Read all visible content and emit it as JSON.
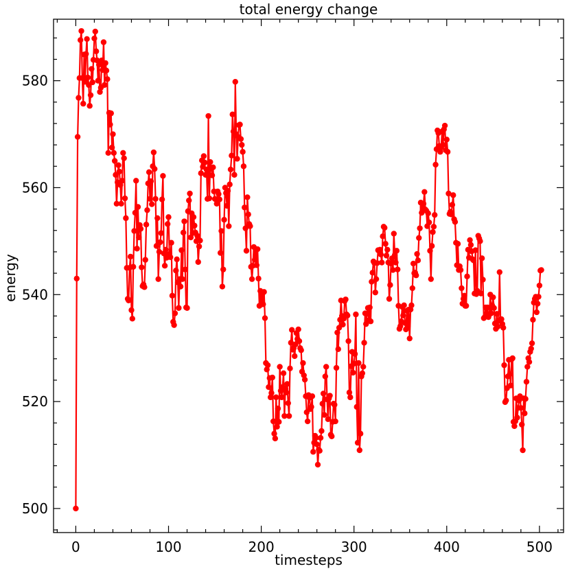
{
  "chart_data": {
    "type": "line",
    "title": "total energy change",
    "xlabel": "timesteps",
    "ylabel": "energy",
    "xlim": [
      -24,
      526
    ],
    "ylim": [
      495.5,
      591.5
    ],
    "xticks": [
      0,
      100,
      200,
      300,
      400,
      500
    ],
    "yticks": [
      500,
      520,
      540,
      560,
      580
    ],
    "x_minor_step": 20,
    "y_minor_step": 4,
    "grid": false,
    "series": [
      {
        "color": "#ff0000",
        "marker": "circle",
        "x_start": 0,
        "x_step": 1,
        "values": [
          500.0,
          543.0,
          569.5,
          576.8,
          580.5,
          587.6,
          589.3,
          580.5,
          575.7,
          584.9,
          579.8,
          585.0,
          587.8,
          580.6,
          579.2,
          575.3,
          577.3,
          582.2,
          579.7,
          583.9,
          587.9,
          589.2,
          585.5,
          583.8,
          580.0,
          583.0,
          577.9,
          578.7,
          583.8,
          582.0,
          587.2,
          579.2,
          583.3,
          581.9,
          580.3,
          566.5,
          574.0,
          571.8,
          573.9,
          567.5,
          570.0,
          566.5,
          565.0,
          562.4,
          557.0,
          561.0,
          564.2,
          563.0,
          560.5,
          557.0,
          561.3,
          566.5,
          565.5,
          558.0,
          554.3,
          545.0,
          539.2,
          538.9,
          545.0,
          547.1,
          537.1,
          535.5,
          545.2,
          551.9,
          555.3,
          561.3,
          548.6,
          556.4,
          550.7,
          553.0,
          552.3,
          545.1,
          541.6,
          541.9,
          541.4,
          546.5,
          553.1,
          555.8,
          560.8,
          562.9,
          557.9,
          561.2,
          556.9,
          564.0,
          566.6,
          563.5,
          557.9,
          549.1,
          554.3,
          542.9,
          548.0,
          549.8,
          551.5,
          557.8,
          562.2,
          547.7,
          545.4,
          548.4,
          546.9,
          553.2,
          554.5,
          547.6,
          547.0,
          549.7,
          539.8,
          534.9,
          534.3,
          536.5,
          544.5,
          546.6,
          542.3,
          537.5,
          542.9,
          541.5,
          548.3,
          542.9,
          551.6,
          553.7,
          544.7,
          537.6,
          537.5,
          555.6,
          557.6,
          558.9,
          550.7,
          555.2,
          551.5,
          554.5,
          552.9,
          551.6,
          550.0,
          551.0,
          546.1,
          549.0,
          550.1,
          562.7,
          565.1,
          563.9,
          565.9,
          564.7,
          562.4,
          563.4,
          557.9,
          573.4,
          558.0,
          564.8,
          563.7,
          562.3,
          563.8,
          559.3,
          557.9,
          557.8,
          557.0,
          559.3,
          558.8,
          557.8,
          547.8,
          551.9,
          541.5,
          544.7,
          554.0,
          560.0,
          559.0,
          556.6,
          559.4,
          552.8,
          560.6,
          563.4,
          566.0,
          573.7,
          570.5,
          562.4,
          579.8,
          570.0,
          565.4,
          569.5,
          571.7,
          571.8,
          569.1,
          568.0,
          566.7,
          564.0,
          556.3,
          552.4,
          548.2,
          558.2,
          555.0,
          553.2,
          552.8,
          545.2,
          542.9,
          545.4,
          548.9,
          546.5,
          548.2,
          545.5,
          548.5,
          543.0,
          537.9,
          540.7,
          538.2,
          540.0,
          538.2,
          540.5,
          535.6,
          527.2,
          526.0,
          526.8,
          522.7,
          524.4,
          520.8,
          521.6,
          524.5,
          516.3,
          514.0,
          513.1,
          520.8,
          515.3,
          518.7,
          516.2,
          526.5,
          522.0,
          520.8,
          522.7,
          525.3,
          517.3,
          522.4,
          521.7,
          523.3,
          519.7,
          517.3,
          526.2,
          531.0,
          533.4,
          529.7,
          530.0,
          528.5,
          530.7,
          532.8,
          531.7,
          533.5,
          531.3,
          530.0,
          529.6,
          525.6,
          527.2,
          524.9,
          524.1,
          521.0,
          518.0,
          516.3,
          521.2,
          520.7,
          518.6,
          519.0,
          521.0,
          510.6,
          512.3,
          513.6,
          513.2,
          512.0,
          508.2,
          511.0,
          510.8,
          513.2,
          514.5,
          519.6,
          521.5,
          517.5,
          524.7,
          526.5,
          520.4,
          516.7,
          520.6,
          521.1,
          513.8,
          513.5,
          516.2,
          519.6,
          519.4,
          516.3,
          526.3,
          532.9,
          529.8,
          533.8,
          535.3,
          538.9,
          536.0,
          534.4,
          535.5,
          538.8,
          539.1,
          536.3,
          536.1,
          531.3,
          521.7,
          520.8,
          526.6,
          529.3,
          525.4,
          527.1,
          528.9,
          536.3,
          519.0,
          512.3,
          527.2,
          510.9,
          514.0,
          524.7,
          525.3,
          526.5,
          531.0,
          536.5,
          534.5,
          536.4,
          537.5,
          535.2,
          537.6,
          535.0,
          542.4,
          544.1,
          546.2,
          545.9,
          540.4,
          542.9,
          545.9,
          548.3,
          548.2,
          548.4,
          547.5,
          546.0,
          550.9,
          552.7,
          552.5,
          549.5,
          547.3,
          548.4,
          546.0,
          539.2,
          541.8,
          545.8,
          546.8,
          544.6,
          551.4,
          547.4,
          546.0,
          548.2,
          544.7,
          537.9,
          533.6,
          534.1,
          535.0,
          537.7,
          536.1,
          538.0,
          534.7,
          533.5,
          537.0,
          534.1,
          537.2,
          531.8,
          537.2,
          538.0,
          541.2,
          545.8,
          544.0,
          544.1,
          543.6,
          547.6,
          546.4,
          550.6,
          552.4,
          557.2,
          555.3,
          556.4,
          557.0,
          559.2,
          555.9,
          555.7,
          552.8,
          555.2,
          553.5,
          548.2,
          542.9,
          549.1,
          551.7,
          552.7,
          554.9,
          564.3,
          567.2,
          570.7,
          570.2,
          567.8,
          566.7,
          567.5,
          570.5,
          568.0,
          570.9,
          571.6,
          567.0,
          569.0,
          566.7,
          558.9,
          555.1,
          555.5,
          555.0,
          556.8,
          558.6,
          554.1,
          553.6,
          549.7,
          545.5,
          549.5,
          544.6,
          545.3,
          544.6,
          541.2,
          538.3,
          539.2,
          539.8,
          537.9,
          537.9,
          543.4,
          548.4,
          546.9,
          550.2,
          549.3,
          548.1,
          546.6,
          546.4,
          540.2,
          548.3,
          540.1,
          540.7,
          551.0,
          550.5,
          550.0,
          540.2,
          546.8,
          542.8,
          535.6,
          535.8,
          537.6,
          536.0,
          537.6,
          535.8,
          536.3,
          540.0,
          536.5,
          538.0,
          539.5,
          537.5,
          534.6,
          533.6,
          536.4,
          534.0,
          535.1,
          544.2,
          535.2,
          535.4,
          534.5,
          533.8,
          526.8,
          519.9,
          520.2,
          522.5,
          524.7,
          527.8,
          525.1,
          523.0,
          527.9,
          528.1,
          516.2,
          515.4,
          516.3,
          520.6,
          517.0,
          518.8,
          520.2,
          521.0,
          518.8,
          515.7,
          510.9,
          520.6,
          517.8,
          520.5,
          523.7,
          526.5,
          528.1,
          527.4,
          529.3,
          529.9,
          530.9,
          535.3,
          538.5,
          539.2,
          539.6,
          536.7,
          538.3,
          539.6,
          541.7,
          544.5,
          544.6
        ]
      }
    ]
  }
}
